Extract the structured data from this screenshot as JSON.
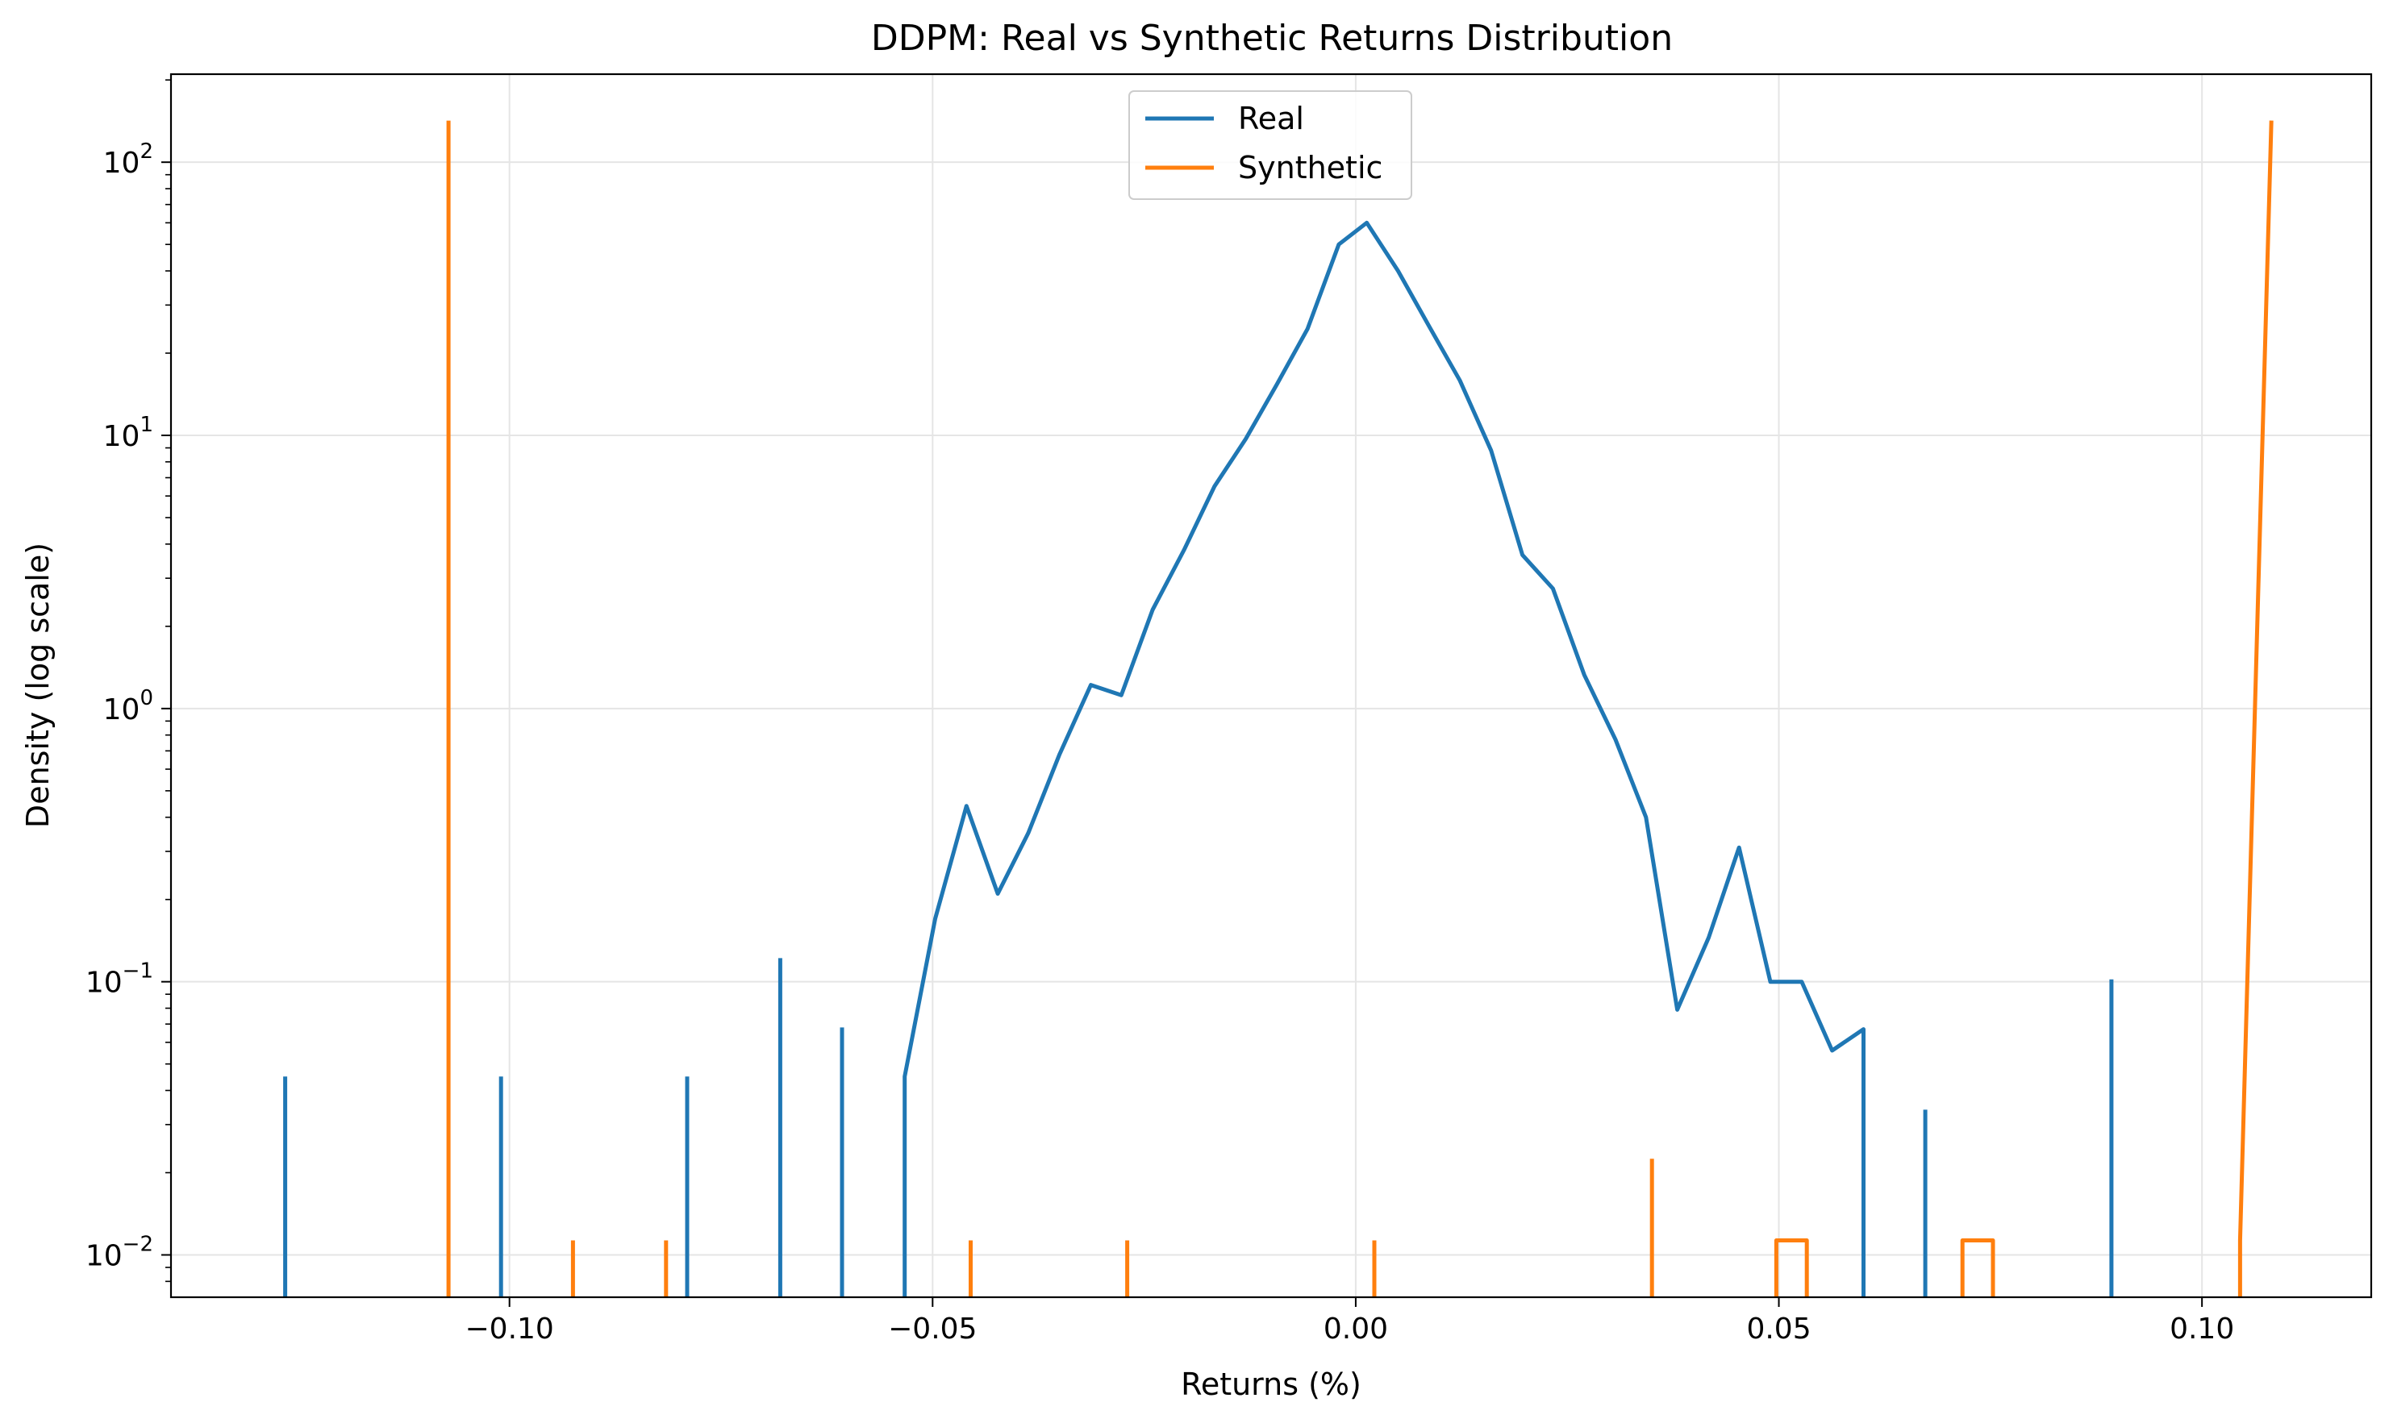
{
  "chart_data": {
    "type": "line",
    "title": "DDPM: Real vs Synthetic Returns Distribution",
    "xlabel": "Returns (%)",
    "ylabel": "Density (log scale)",
    "xlim": [
      -0.14,
      0.12
    ],
    "ylim": [
      0.007,
      210
    ],
    "yscale": "log",
    "grid": true,
    "legend_position": "upper center",
    "x_ticks": [
      {
        "value": -0.1,
        "label": "−0.10"
      },
      {
        "value": -0.05,
        "label": "−0.05"
      },
      {
        "value": 0.0,
        "label": "0.00"
      },
      {
        "value": 0.05,
        "label": "0.05"
      },
      {
        "value": 0.1,
        "label": "0.10"
      }
    ],
    "y_ticks": [
      {
        "value": 0.01,
        "base": "10",
        "exp": "−2"
      },
      {
        "value": 0.1,
        "base": "10",
        "exp": "−1"
      },
      {
        "value": 1,
        "base": "10",
        "exp": "0"
      },
      {
        "value": 10,
        "base": "10",
        "exp": "1"
      },
      {
        "value": 100,
        "base": "10",
        "exp": "2"
      }
    ],
    "series": [
      {
        "name": "Real",
        "color": "#1f77b4",
        "segments": [
          [
            [
              -0.1265,
              0.0045
            ],
            [
              -0.1265,
              0.045
            ]
          ],
          [
            [
              -0.101,
              0.0045
            ],
            [
              -0.101,
              0.045
            ]
          ],
          [
            [
              -0.079,
              0.0045
            ],
            [
              -0.079,
              0.045
            ]
          ],
          [
            [
              -0.068,
              0.0045
            ],
            [
              -0.068,
              0.122
            ]
          ],
          [
            [
              -0.0607,
              0.0045
            ],
            [
              -0.0607,
              0.068
            ]
          ],
          [
            [
              -0.0533,
              0.0045
            ],
            [
              -0.0533,
              0.045
            ],
            [
              -0.0497,
              0.17
            ],
            [
              -0.046,
              0.44
            ],
            [
              -0.0423,
              0.21
            ],
            [
              -0.0387,
              0.35
            ],
            [
              -0.035,
              0.68
            ],
            [
              -0.0313,
              1.22
            ],
            [
              -0.0277,
              1.12
            ],
            [
              -0.024,
              2.3
            ],
            [
              -0.0203,
              3.8
            ],
            [
              -0.0167,
              6.5
            ],
            [
              -0.013,
              9.7
            ],
            [
              -0.0093,
              15.4
            ],
            [
              -0.0057,
              24.5
            ],
            [
              -0.002,
              50
            ],
            [
              0.0013,
              60
            ],
            [
              0.005,
              40
            ],
            [
              0.0087,
              25
            ],
            [
              0.0123,
              15.9
            ],
            [
              0.016,
              8.8
            ],
            [
              0.0197,
              3.65
            ],
            [
              0.0233,
              2.75
            ],
            [
              0.027,
              1.33
            ],
            [
              0.0307,
              0.77
            ],
            [
              0.0343,
              0.4
            ],
            [
              0.038,
              0.079
            ],
            [
              0.0417,
              0.145
            ],
            [
              0.0453,
              0.31
            ],
            [
              0.049,
              0.1
            ],
            [
              0.0527,
              0.1
            ],
            [
              0.0563,
              0.056
            ],
            [
              0.06,
              0.067
            ],
            [
              0.06,
              0.0045
            ]
          ],
          [
            [
              0.0673,
              0.0045
            ],
            [
              0.0673,
              0.034
            ]
          ],
          [
            [
              0.0893,
              0.0045
            ],
            [
              0.0893,
              0.102
            ]
          ]
        ]
      },
      {
        "name": "Synthetic",
        "color": "#ff7f0e",
        "segments": [
          [
            [
              -0.1072,
              0.0045
            ],
            [
              -0.1072,
              142
            ]
          ],
          [
            [
              -0.0925,
              0.0045
            ],
            [
              -0.0925,
              0.0113
            ]
          ],
          [
            [
              -0.0815,
              0.0045
            ],
            [
              -0.0815,
              0.0113
            ]
          ],
          [
            [
              -0.0455,
              0.0045
            ],
            [
              -0.0455,
              0.0113
            ]
          ],
          [
            [
              -0.027,
              0.0045
            ],
            [
              -0.027,
              0.0113
            ]
          ],
          [
            [
              0.0022,
              0.0045
            ],
            [
              0.0022,
              0.0113
            ]
          ],
          [
            [
              0.035,
              0.0045
            ],
            [
              0.035,
              0.0225
            ]
          ],
          [
            [
              0.0497,
              0.0045
            ],
            [
              0.0497,
              0.0113
            ],
            [
              0.0533,
              0.0113
            ],
            [
              0.0533,
              0.0045
            ]
          ],
          [
            [
              0.0717,
              0.0045
            ],
            [
              0.0717,
              0.0113
            ],
            [
              0.0753,
              0.0113
            ],
            [
              0.0753,
              0.0045
            ]
          ],
          [
            [
              0.1045,
              0.0045
            ],
            [
              0.1045,
              0.0113
            ],
            [
              0.1082,
              142
            ]
          ]
        ]
      }
    ]
  }
}
